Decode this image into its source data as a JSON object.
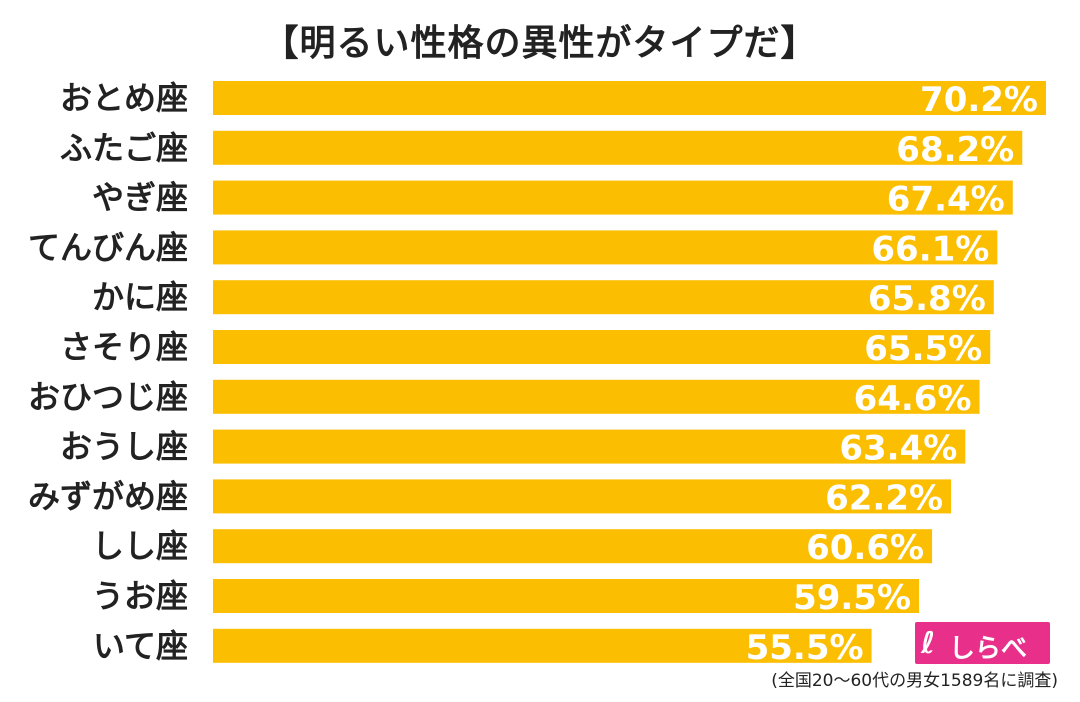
{
  "chart_data": {
    "type": "bar",
    "orientation": "horizontal",
    "title": "【明るい性格の異性がタイプだ】",
    "categories": [
      "おとめ座",
      "ふたご座",
      "やぎ座",
      "てんびん座",
      "かに座",
      "さそり座",
      "おひつじ座",
      "おうし座",
      "みずがめ座",
      "しし座",
      "うお座",
      "いて座"
    ],
    "values": [
      70.2,
      68.2,
      67.4,
      66.1,
      65.8,
      65.5,
      64.6,
      63.4,
      62.2,
      60.6,
      59.5,
      55.5
    ],
    "value_labels": [
      "70.2%",
      "68.2%",
      "67.4%",
      "66.1%",
      "65.8%",
      "65.5%",
      "64.6%",
      "63.4%",
      "62.2%",
      "60.6%",
      "59.5%",
      "55.5%"
    ],
    "unit": "%",
    "grid": false,
    "legend": "none",
    "bar_color": "#fbbe00"
  },
  "footer": {
    "source_note": "(全国20〜60代の男女1589名に調査)"
  },
  "brand": {
    "name": "しらべぇ",
    "color": "#e8308a"
  }
}
